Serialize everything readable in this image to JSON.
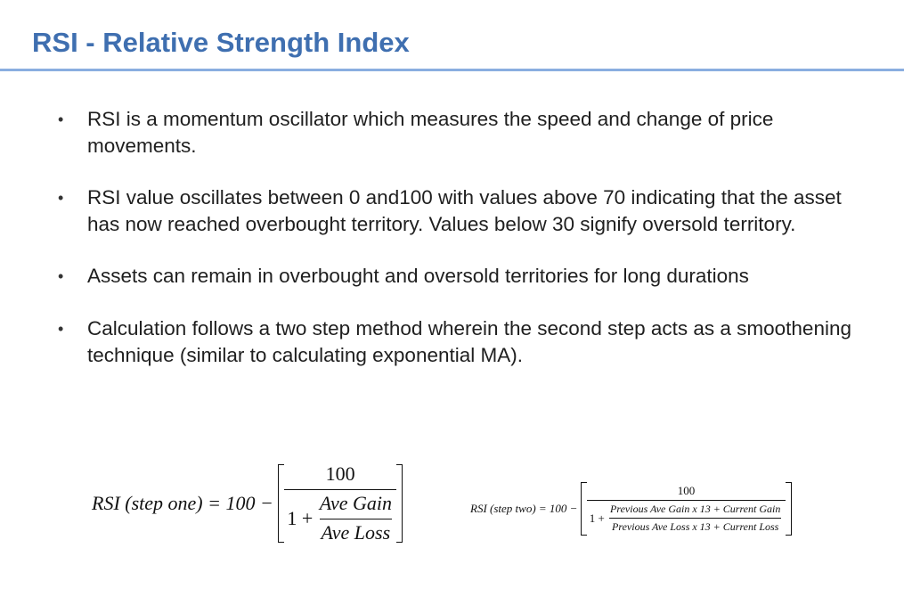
{
  "slide": {
    "title": "RSI - Relative Strength Index"
  },
  "bullets": [
    {
      "marker": "•",
      "text": "RSI is a momentum oscillator which measures the speed and change of price movements."
    },
    {
      "marker": "•",
      "text": "RSI value oscillates between 0 and100 with values above 70 indicating that the asset has now reached overbought territory. Values below 30 signify oversold territory."
    },
    {
      "marker": "•",
      "text": "Assets can remain in overbought and oversold territories for long durations"
    },
    {
      "marker": "•",
      "text": "Calculation follows a two step method wherein the second step acts as a smoothening technique (similar to calculating exponential MA)."
    }
  ],
  "formula_one": {
    "lhs": "RSI (step one) = 100 − ",
    "numerator": "100",
    "one_plus": "1 + ",
    "gain": "Ave Gain",
    "loss": "Ave Loss"
  },
  "formula_two": {
    "lhs": "RSI (step two) = 100 − ",
    "numerator": "100",
    "one_plus": "1 + ",
    "gain": "Previous Ave Gain x 13 + Current Gain",
    "loss": "Previous Ave Loss x 13 + Current Loss"
  }
}
